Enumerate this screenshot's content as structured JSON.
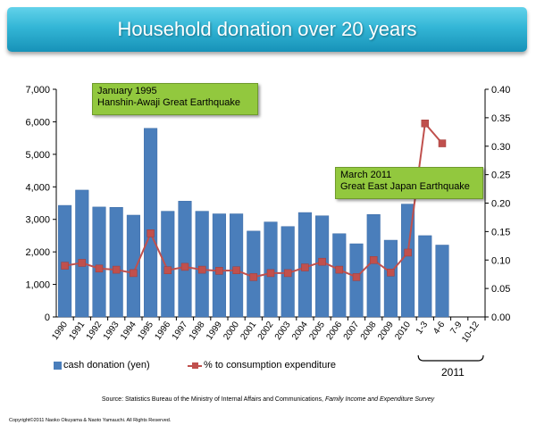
{
  "title": "Household donation over 20 years",
  "chart_data": {
    "type": "bar+line",
    "title": "Household donation over 20 years",
    "categories": [
      "1990",
      "1991",
      "1992",
      "1993",
      "1994",
      "1995",
      "1996",
      "1997",
      "1998",
      "1999",
      "2000",
      "2001",
      "2002",
      "2003",
      "2004",
      "2005",
      "2006",
      "2007",
      "2008",
      "2009",
      "2010",
      "1-3",
      "4-6",
      "7-9",
      "10-12"
    ],
    "group_label": "2011",
    "group_categories": [
      "1-3",
      "4-6",
      "7-9",
      "10-12"
    ],
    "series": [
      {
        "name": "cash donation (yen)",
        "type": "bar",
        "axis": "left",
        "color": "#4a7ebb",
        "values": [
          3430,
          3900,
          3380,
          3370,
          3130,
          5800,
          3250,
          3560,
          3250,
          3170,
          3170,
          2640,
          2920,
          2780,
          3210,
          3110,
          2560,
          2250,
          3150,
          2360,
          3470,
          2500,
          2210,
          null,
          null
        ]
      },
      {
        "name": "% to consumption expenditure",
        "type": "line",
        "axis": "right",
        "color": "#c0504d",
        "values": [
          0.09,
          0.095,
          0.085,
          0.083,
          0.077,
          0.147,
          0.082,
          0.088,
          0.083,
          0.081,
          0.082,
          0.07,
          0.077,
          0.077,
          0.087,
          0.097,
          0.083,
          0.07,
          0.1,
          0.078,
          0.113,
          0.34,
          0.305,
          null,
          null
        ]
      }
    ],
    "y_left": {
      "min": 0,
      "max": 7000,
      "ticks": [
        "0",
        "1,000",
        "2,000",
        "3,000",
        "4,000",
        "5,000",
        "6,000",
        "7,000"
      ]
    },
    "y_right": {
      "min": 0,
      "max": 0.4,
      "ticks": [
        "0.00",
        "0.05",
        "0.10",
        "0.15",
        "0.20",
        "0.25",
        "0.30",
        "0.35",
        "0.40"
      ]
    },
    "annotations": [
      {
        "id": "1995",
        "lines": [
          "January 1995",
          "Hanshin-Awaji Great Earthquake"
        ]
      },
      {
        "id": "2011",
        "lines": [
          "March 2011",
          "Great East Japan Earthquake"
        ]
      }
    ],
    "legend": [
      "cash donation (yen)",
      "% to consumption expenditure"
    ]
  },
  "source": {
    "prefix": "Source: Statistics Bureau of the Ministry of Internal Affairs and Communications, ",
    "title": "Family Income and Expenditure Survey"
  },
  "copyright": "Copyright©2011  Naoko Okuyama & Naoto Yamauchi.  All Rights Reserved."
}
